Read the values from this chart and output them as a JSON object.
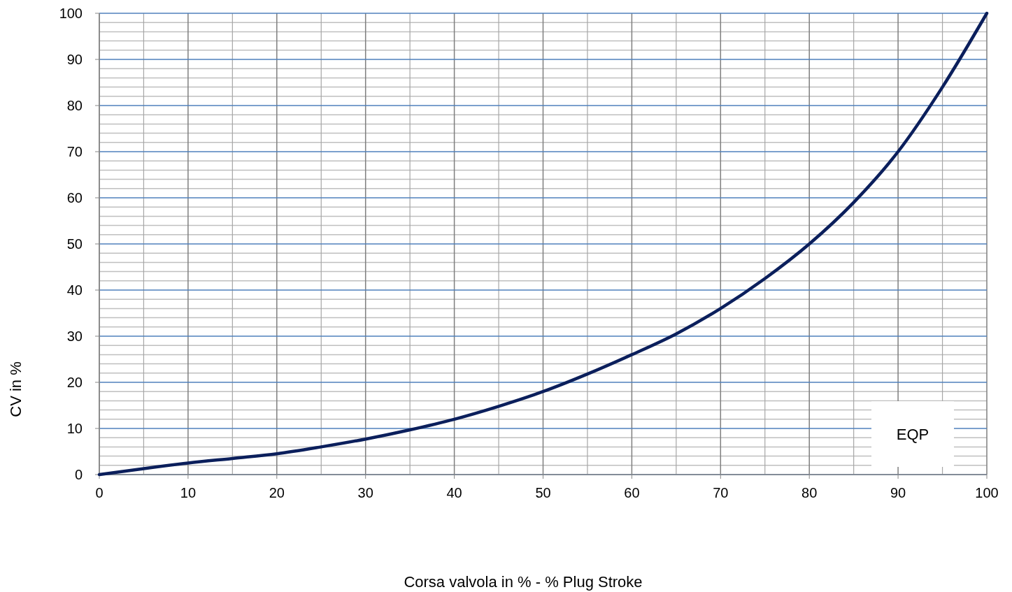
{
  "chart_data": {
    "type": "line",
    "xlabel": "Corsa valvola in % - % Plug Stroke",
    "ylabel": "CV in %",
    "x": [
      0,
      5,
      10,
      15,
      20,
      25,
      30,
      35,
      40,
      45,
      50,
      55,
      60,
      65,
      70,
      75,
      80,
      85,
      90,
      95,
      100
    ],
    "series": [
      {
        "name": "EQP",
        "color": "#0b1f5c",
        "values": [
          0,
          1.3,
          2.5,
          3.5,
          4.5,
          6,
          7.7,
          9.7,
          12,
          14.8,
          18,
          21.8,
          26,
          30.5,
          36,
          42.5,
          50,
          59,
          70,
          84,
          100
        ]
      }
    ],
    "xlim": [
      0,
      100
    ],
    "ylim": [
      0,
      100
    ],
    "xticks": [
      0,
      10,
      20,
      30,
      40,
      50,
      60,
      70,
      80,
      90,
      100
    ],
    "yticks": [
      0,
      10,
      20,
      30,
      40,
      50,
      60,
      70,
      80,
      90,
      100
    ],
    "grid": true,
    "legend": "bottom right",
    "marker": "none",
    "line_style": "solid"
  }
}
